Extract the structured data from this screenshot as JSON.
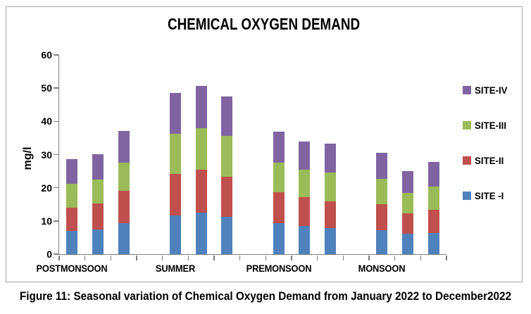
{
  "chart": {
    "title": "CHEMICAL OXYGEN DEMAND",
    "y_axis": {
      "label": "mg/l",
      "min": 0,
      "max": 60,
      "step": 10
    },
    "legend": [
      {
        "label": "SITE-IV",
        "color": "#8064A2"
      },
      {
        "label": "SITE-III",
        "color": "#9BBB59"
      },
      {
        "label": "SITE-II",
        "color": "#C0504D"
      },
      {
        "label": "SITE -I",
        "color": "#4F81BD"
      }
    ]
  },
  "chart_data": {
    "type": "bar",
    "stacked": true,
    "title": "CHEMICAL OXYGEN DEMAND",
    "xlabel": "",
    "ylabel": "mg/l",
    "ylim": [
      0,
      60
    ],
    "ytick_step": 10,
    "grid": false,
    "legend_position": "right",
    "categories": [
      "POSTMONSOON",
      "SUMMER",
      "PREMONSOON",
      "MONSOON"
    ],
    "bars_per_category": 3,
    "series": [
      {
        "name": "SITE -I",
        "color": "#4F81BD",
        "values": [
          [
            6.9,
            7.5,
            9.3
          ],
          [
            11.7,
            12.5,
            11.3
          ],
          [
            9.3,
            8.5,
            7.9
          ],
          [
            7.2,
            6.1,
            6.4
          ]
        ]
      },
      {
        "name": "SITE-II",
        "color": "#C0504D",
        "values": [
          [
            7.0,
            7.8,
            9.8
          ],
          [
            12.5,
            12.9,
            12.1
          ],
          [
            9.3,
            8.7,
            8.1
          ],
          [
            7.8,
            6.2,
            7.0
          ]
        ]
      },
      {
        "name": "SITE-III",
        "color": "#9BBB59",
        "values": [
          [
            7.3,
            7.1,
            8.4
          ],
          [
            12.1,
            12.6,
            12.2
          ],
          [
            8.9,
            8.2,
            8.7
          ],
          [
            7.7,
            6.2,
            7.0
          ]
        ]
      },
      {
        "name": "SITE-IV",
        "color": "#8064A2",
        "values": [
          [
            7.5,
            7.7,
            9.6
          ],
          [
            12.2,
            12.6,
            11.9
          ],
          [
            9.5,
            8.6,
            8.6
          ],
          [
            7.8,
            6.6,
            7.4
          ]
        ]
      }
    ],
    "stack_totals": [
      [
        28.7,
        30.1,
        37.1
      ],
      [
        48.5,
        50.6,
        47.5
      ],
      [
        37.0,
        34.0,
        33.3
      ],
      [
        30.5,
        25.1,
        27.8
      ]
    ]
  },
  "caption": "Figure 11: Seasonal variation of Chemical Oxygen Demand from January 2022 to December2022"
}
